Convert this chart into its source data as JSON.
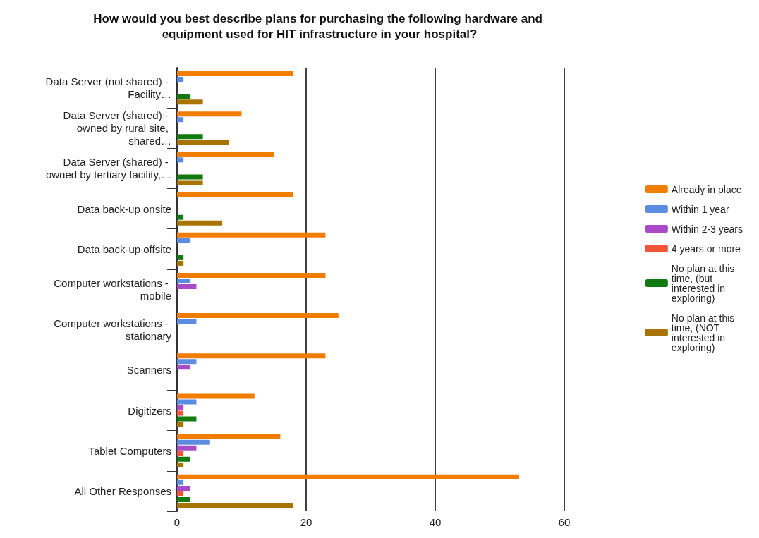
{
  "chart_data": {
    "type": "bar",
    "orientation": "horizontal",
    "title": "How would you best describe plans for purchasing the following hardware and equipment used for HIT infrastructure in your hospital?",
    "categories": [
      "Data Server (not shared) - Facility…",
      "Data Server (shared) - owned by rural site, shared…",
      "Data Server (shared) - owned by tertiary facility,…",
      "Data back-up onsite",
      "Data back-up offsite",
      "Computer workstations - mobile",
      "Computer workstations - stationary",
      "Scanners",
      "Digitizers",
      "Tablet Computers",
      "All Other Responses"
    ],
    "series": [
      {
        "name": "Already in place",
        "color": "#f07c00",
        "values": [
          18,
          10,
          15,
          18,
          23,
          23,
          25,
          23,
          12,
          16,
          53
        ]
      },
      {
        "name": "Within 1 year",
        "color": "#5b8ce0",
        "values": [
          1,
          1,
          1,
          0,
          2,
          2,
          3,
          3,
          3,
          5,
          1
        ]
      },
      {
        "name": "Within 2-3 years",
        "color": "#a94bc9",
        "values": [
          0,
          0,
          0,
          0,
          0,
          3,
          0,
          2,
          1,
          3,
          2
        ]
      },
      {
        "name": "4 years or more",
        "color": "#f0553a",
        "values": [
          0,
          0,
          0,
          0,
          0,
          0,
          0,
          0,
          1,
          1,
          1
        ]
      },
      {
        "name": "No plan at this time, (but interested in exploring)",
        "color": "#117a11",
        "values": [
          2,
          4,
          4,
          1,
          1,
          0,
          0,
          0,
          3,
          2,
          2
        ]
      },
      {
        "name": "No plan at this time, (NOT interested in exploring)",
        "color": "#a87400",
        "values": [
          4,
          8,
          4,
          7,
          1,
          0,
          0,
          0,
          1,
          1,
          18
        ]
      }
    ],
    "xlim": [
      0,
      60
    ],
    "xticks": [
      0,
      20,
      40,
      60
    ],
    "grid": "x",
    "legend": "right"
  }
}
